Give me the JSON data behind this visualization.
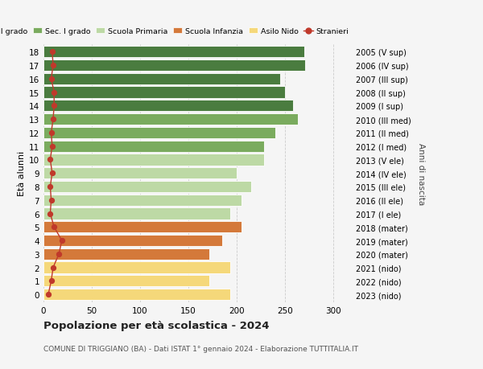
{
  "ages": [
    18,
    17,
    16,
    15,
    14,
    13,
    12,
    11,
    10,
    9,
    8,
    7,
    6,
    5,
    4,
    3,
    2,
    1,
    0
  ],
  "values": [
    270,
    271,
    245,
    250,
    258,
    263,
    240,
    228,
    228,
    200,
    215,
    205,
    193,
    205,
    185,
    172,
    193,
    172,
    193
  ],
  "stranieri": [
    9,
    10,
    8,
    11,
    11,
    10,
    8,
    9,
    7,
    9,
    7,
    8,
    7,
    11,
    19,
    16,
    10,
    8,
    5
  ],
  "bar_colors": [
    "#4a7c3f",
    "#4a7c3f",
    "#4a7c3f",
    "#4a7c3f",
    "#4a7c3f",
    "#7aab5e",
    "#7aab5e",
    "#7aab5e",
    "#bdd9a5",
    "#bdd9a5",
    "#bdd9a5",
    "#bdd9a5",
    "#bdd9a5",
    "#d4793a",
    "#d4793a",
    "#d4793a",
    "#f5d87a",
    "#f5d87a",
    "#f5d87a"
  ],
  "right_labels": [
    "2005 (V sup)",
    "2006 (IV sup)",
    "2007 (III sup)",
    "2008 (II sup)",
    "2009 (I sup)",
    "2010 (III med)",
    "2011 (II med)",
    "2012 (I med)",
    "2013 (V ele)",
    "2014 (IV ele)",
    "2015 (III ele)",
    "2016 (II ele)",
    "2017 (I ele)",
    "2018 (mater)",
    "2019 (mater)",
    "2020 (mater)",
    "2021 (nido)",
    "2022 (nido)",
    "2023 (nido)"
  ],
  "ylabel_left": "Età alunni",
  "ylabel_right": "Anni di nascita",
  "title": "Popolazione per età scolastica - 2024",
  "subtitle": "COMUNE DI TRIGGIANO (BA) - Dati ISTAT 1° gennaio 2024 - Elaborazione TUTTITALIA.IT",
  "xlim": [
    0,
    320
  ],
  "xticks": [
    0,
    50,
    100,
    150,
    200,
    250,
    300
  ],
  "legend_labels": [
    "Sec. II grado",
    "Sec. I grado",
    "Scuola Primaria",
    "Scuola Infanzia",
    "Asilo Nido",
    "Stranieri"
  ],
  "legend_colors": [
    "#4a7c3f",
    "#7aab5e",
    "#bdd9a5",
    "#d4793a",
    "#f5d87a",
    "#c0392b"
  ],
  "stranieri_color": "#c0392b",
  "bg_color": "#f5f5f5",
  "bar_height": 0.85,
  "grid_color": "#cccccc"
}
